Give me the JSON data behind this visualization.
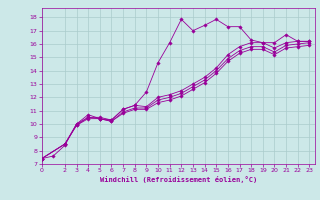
{
  "xlabel": "Windchill (Refroidissement éolien,°C)",
  "bg_color": "#cce8e8",
  "grid_color": "#aacccc",
  "line_color": "#990099",
  "x_ticks": [
    0,
    2,
    3,
    4,
    5,
    6,
    7,
    8,
    9,
    10,
    11,
    12,
    13,
    14,
    15,
    16,
    17,
    18,
    19,
    20,
    21,
    22,
    23
  ],
  "y_ticks": [
    7,
    8,
    9,
    10,
    11,
    12,
    13,
    14,
    15,
    16,
    17,
    18
  ],
  "xlim": [
    0,
    23.5
  ],
  "ylim": [
    7,
    18.7
  ],
  "series": [
    {
      "x": [
        0,
        1,
        2,
        3,
        4,
        5,
        6,
        7,
        8,
        9,
        10,
        11,
        12,
        13,
        14,
        15,
        16,
        17,
        18,
        19,
        20,
        21,
        22,
        23
      ],
      "y": [
        7.4,
        7.6,
        8.4,
        10.0,
        10.7,
        10.4,
        10.3,
        11.1,
        11.4,
        12.4,
        14.6,
        16.1,
        17.85,
        17.0,
        17.4,
        17.85,
        17.3,
        17.3,
        16.3,
        16.1,
        16.1,
        16.7,
        16.2,
        16.2
      ]
    },
    {
      "x": [
        0,
        2,
        3,
        4,
        5,
        6,
        7,
        8,
        9,
        10,
        11,
        12,
        13,
        14,
        15,
        16,
        17,
        18,
        19,
        20,
        21,
        22,
        23
      ],
      "y": [
        7.4,
        8.5,
        10.0,
        10.5,
        10.5,
        10.3,
        11.1,
        11.4,
        11.3,
        12.0,
        12.2,
        12.5,
        13.0,
        13.5,
        14.2,
        15.2,
        15.8,
        16.1,
        16.1,
        15.7,
        16.1,
        16.2,
        16.2
      ]
    },
    {
      "x": [
        0,
        2,
        3,
        4,
        5,
        6,
        7,
        8,
        9,
        10,
        11,
        12,
        13,
        14,
        15,
        16,
        17,
        18,
        19,
        20,
        21,
        22,
        23
      ],
      "y": [
        7.4,
        8.5,
        9.9,
        10.5,
        10.4,
        10.2,
        10.9,
        11.2,
        11.2,
        11.8,
        12.0,
        12.3,
        12.8,
        13.3,
        14.0,
        14.9,
        15.5,
        15.8,
        15.8,
        15.4,
        15.9,
        16.0,
        16.1
      ]
    },
    {
      "x": [
        0,
        2,
        3,
        4,
        5,
        6,
        7,
        8,
        9,
        10,
        11,
        12,
        13,
        14,
        15,
        16,
        17,
        18,
        19,
        20,
        21,
        22,
        23
      ],
      "y": [
        7.4,
        8.5,
        9.9,
        10.4,
        10.4,
        10.2,
        10.8,
        11.1,
        11.1,
        11.6,
        11.8,
        12.1,
        12.6,
        13.1,
        13.8,
        14.7,
        15.3,
        15.6,
        15.6,
        15.2,
        15.7,
        15.8,
        15.9
      ]
    }
  ]
}
